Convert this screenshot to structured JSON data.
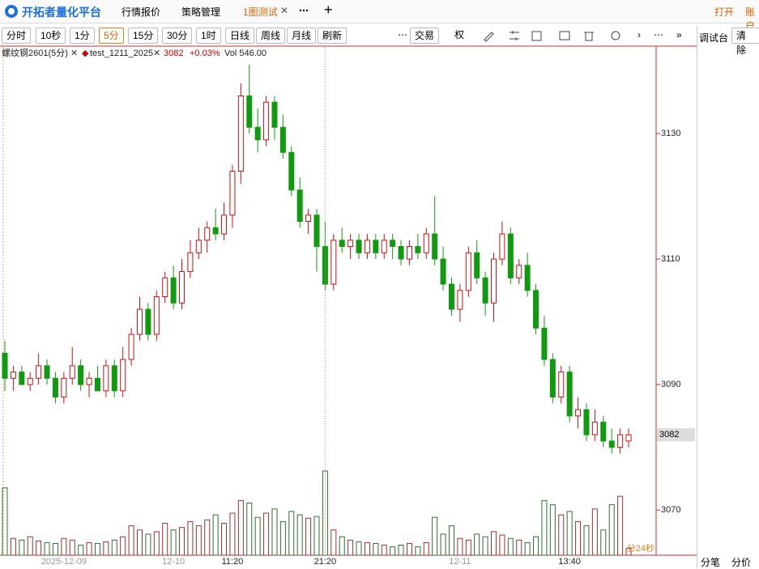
{
  "app": {
    "logo": "开拓者量化平台",
    "tabs": [
      "行情报价",
      "策略管理",
      "1图测试"
    ],
    "more": "⋯",
    "add": "+",
    "right_actions": [
      "打开",
      "账户"
    ]
  },
  "toolbar": {
    "periods": [
      "分时",
      "10秒",
      "1分",
      "5分",
      "15分",
      "30分",
      "1时",
      "日线",
      "周线",
      "月线",
      "刷新"
    ],
    "active_period": 3,
    "more": "⋯",
    "trade": "交易",
    "rights": "权",
    "next": "›",
    "more2": "⋯",
    "expand": "»"
  },
  "side_panel": {
    "title": "调试台",
    "clear": "清除"
  },
  "bottom_tabs": [
    "分笔",
    "分价"
  ],
  "legend": {
    "symbol": "螺纹钢2601(5分)",
    "strategy": "test_1211_2025",
    "price": "3082",
    "change": "+0.03%",
    "volume": "Vol 546.00"
  },
  "countdown": "分24秒",
  "chart_data": {
    "type": "candlestick",
    "categories": [
      null,
      null,
      null,
      null,
      null,
      null,
      null,
      "2025-12-09",
      null,
      null,
      null,
      null,
      null,
      null,
      null,
      null,
      null,
      null,
      null,
      null,
      "12-10",
      null,
      null,
      null,
      null,
      null,
      null,
      "11:20",
      null,
      null,
      null,
      null,
      null,
      null,
      null,
      null,
      null,
      null,
      "21:20",
      null,
      null,
      null,
      null,
      null,
      null,
      null,
      null,
      null,
      null,
      null,
      null,
      null,
      null,
      null,
      "12-11",
      null,
      null,
      null,
      null,
      null,
      null,
      null,
      null,
      null,
      null,
      null,
      null,
      "13:40",
      null,
      null,
      null,
      null,
      null,
      null,
      null
    ],
    "open": [
      3095,
      3091,
      3092,
      3090,
      3091,
      3093,
      3091,
      3088,
      3091,
      3093,
      3090,
      3091,
      3089,
      3093,
      3089,
      3094,
      3098,
      3102,
      3098,
      3104,
      3107,
      3103,
      3108,
      3111,
      3113,
      3115,
      3114,
      3117,
      3124,
      3136,
      3131,
      3129,
      3135,
      3131,
      3127,
      3121,
      3116,
      3117,
      3112,
      3106,
      3113,
      3112,
      3113,
      3111,
      3113,
      3111,
      3113,
      3112,
      3110,
      3112,
      3111,
      3114,
      3110,
      3106,
      3102,
      3105,
      3111,
      3107,
      3103,
      3110,
      3114,
      3107,
      3109,
      3105,
      3099,
      3094,
      3088,
      3092,
      3085,
      3086,
      3082,
      3084,
      3081,
      3080,
      3081
    ],
    "high": [
      3097,
      3093,
      3093,
      3092,
      3095,
      3094,
      3092,
      3092,
      3096,
      3094,
      3092,
      3093,
      3094,
      3094,
      3096,
      3099,
      3104,
      3103,
      3105,
      3108,
      3109,
      3110,
      3113,
      3115,
      3116,
      3118,
      3119,
      3125,
      3138,
      3141,
      3134,
      3136,
      3136,
      3133,
      3128,
      3123,
      3118,
      3118,
      3116,
      3114,
      3115,
      3114,
      3114,
      3114,
      3114,
      3114,
      3114,
      3113,
      3113,
      3114,
      3115,
      3120,
      3112,
      3107,
      3106,
      3112,
      3113,
      3108,
      3111,
      3116,
      3115,
      3110,
      3111,
      3106,
      3101,
      3095,
      3093,
      3093,
      3088,
      3087,
      3086,
      3085,
      3083,
      3083,
      3083
    ],
    "low": [
      3089,
      3089,
      3090,
      3089,
      3090,
      3090,
      3087,
      3087,
      3090,
      3089,
      3088,
      3089,
      3088,
      3088,
      3088,
      3093,
      3097,
      3097,
      3097,
      3103,
      3102,
      3102,
      3107,
      3110,
      3111,
      3113,
      3113,
      3115,
      3122,
      3130,
      3127,
      3128,
      3129,
      3126,
      3120,
      3115,
      3114,
      3108,
      3105,
      3105,
      3111,
      3110,
      3110,
      3110,
      3110,
      3110,
      3110,
      3109,
      3109,
      3110,
      3110,
      3109,
      3105,
      3101,
      3100,
      3104,
      3106,
      3101,
      3100,
      3109,
      3106,
      3106,
      3104,
      3098,
      3093,
      3087,
      3087,
      3084,
      3083,
      3081,
      3081,
      3080,
      3079,
      3079,
      3080
    ],
    "close": [
      3091,
      3092,
      3090,
      3091,
      3093,
      3091,
      3088,
      3091,
      3093,
      3090,
      3091,
      3089,
      3093,
      3089,
      3094,
      3098,
      3102,
      3098,
      3104,
      3107,
      3103,
      3108,
      3111,
      3113,
      3115,
      3114,
      3117,
      3124,
      3136,
      3131,
      3129,
      3135,
      3131,
      3127,
      3121,
      3116,
      3117,
      3112,
      3106,
      3113,
      3112,
      3113,
      3111,
      3113,
      3111,
      3113,
      3112,
      3110,
      3112,
      3111,
      3114,
      3110,
      3106,
      3102,
      3105,
      3111,
      3107,
      3103,
      3110,
      3114,
      3107,
      3109,
      3105,
      3099,
      3094,
      3088,
      3092,
      3085,
      3086,
      3082,
      3084,
      3081,
      3080,
      3082,
      3082
    ],
    "volume": [
      80,
      20,
      18,
      22,
      17,
      15,
      14,
      20,
      18,
      12,
      15,
      14,
      16,
      18,
      22,
      35,
      30,
      25,
      28,
      38,
      30,
      33,
      40,
      35,
      42,
      48,
      38,
      50,
      65,
      62,
      45,
      50,
      55,
      40,
      52,
      48,
      44,
      46,
      100,
      30,
      22,
      18,
      16,
      15,
      14,
      12,
      10,
      12,
      14,
      10,
      15,
      45,
      25,
      35,
      20,
      18,
      25,
      22,
      28,
      24,
      20,
      18,
      15,
      22,
      65,
      60,
      48,
      52,
      40,
      35,
      55,
      30,
      60,
      70,
      8
    ],
    "ylim": [
      3062.8,
      3143.8
    ],
    "yticks": [
      3070,
      3090,
      3110,
      3130
    ],
    "last_price": 3082,
    "up_color": "#d01010",
    "down_color": "#109a10"
  }
}
